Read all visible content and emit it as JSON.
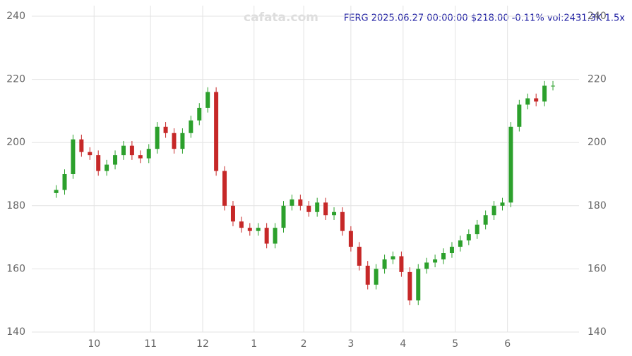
{
  "chart_data": {
    "type": "candlestick",
    "title": "FERG 2025.06.27 00:00:00 $218.00 -0.11% vol:2431.3K 1.5x",
    "watermark": "cafata.com",
    "up_color": "#2ca02c",
    "down_color": "#c62828",
    "open": [
      184,
      185,
      190,
      201,
      197,
      196,
      191,
      193,
      196,
      199,
      196,
      195,
      198,
      205,
      203,
      198,
      203,
      207,
      211,
      216,
      191,
      180,
      175,
      173,
      172,
      173,
      168,
      173,
      180,
      182,
      180,
      178,
      181,
      177,
      178,
      172,
      167,
      161,
      155,
      160,
      163,
      164,
      159,
      150,
      160,
      162,
      163,
      165,
      167,
      169,
      171,
      174,
      177,
      180,
      181,
      205,
      212,
      214,
      213,
      218
    ],
    "high": [
      186.5,
      191.5,
      202.5,
      202.5,
      198.5,
      197.5,
      194.5,
      197.5,
      200.5,
      200.5,
      197.5,
      199.5,
      206.5,
      206.5,
      204.5,
      204.5,
      208.5,
      212.5,
      217.5,
      217.5,
      192.5,
      181.5,
      176.5,
      174.5,
      174.5,
      174.5,
      174.5,
      181.5,
      183.5,
      183.5,
      181.5,
      182.5,
      182.5,
      179.5,
      179.5,
      173.5,
      168.5,
      162.5,
      161.5,
      164.5,
      165.5,
      165.5,
      160.5,
      161.5,
      163.5,
      164.5,
      166.5,
      168.5,
      170.5,
      172.5,
      175.5,
      178.5,
      181.5,
      182.5,
      206.5,
      213.5,
      215.5,
      215.5,
      219.5,
      219.5
    ],
    "low": [
      182.5,
      183.5,
      188.5,
      195.5,
      194.5,
      189.5,
      189.5,
      191.5,
      194.5,
      194.5,
      193.5,
      193.5,
      196.5,
      201.5,
      196.5,
      196.5,
      201.5,
      205.5,
      209.5,
      189.5,
      178.5,
      173.5,
      171.5,
      170.5,
      170.5,
      166.5,
      166.5,
      171.5,
      178.5,
      178.5,
      176.5,
      176.5,
      175.5,
      175.5,
      170.5,
      165.5,
      159.5,
      153.5,
      153.5,
      158.5,
      161.5,
      157.5,
      148.5,
      148.5,
      158.5,
      160.5,
      161.5,
      163.5,
      165.5,
      167.5,
      169.5,
      172.5,
      175.5,
      178.5,
      179.5,
      203.5,
      210.5,
      211.5,
      211.5,
      216.5
    ],
    "close": [
      185,
      190,
      201,
      197,
      196,
      191,
      193,
      196,
      199,
      196,
      195,
      198,
      205,
      203,
      198,
      203,
      207,
      211,
      216,
      191,
      180,
      175,
      173,
      172,
      173,
      168,
      173,
      180,
      182,
      180,
      178,
      181,
      177,
      178,
      172,
      167,
      161,
      155,
      160,
      163,
      164,
      159,
      150,
      160,
      162,
      163,
      165,
      167,
      169,
      171,
      174,
      177,
      180,
      181,
      205,
      212,
      214,
      213,
      218,
      218
    ],
    "xlim": [
      -2.9,
      62.1
    ],
    "xticks": [
      {
        "value": 4.5,
        "label": "10"
      },
      {
        "value": 11.2,
        "label": "11"
      },
      {
        "value": 17.4,
        "label": "12"
      },
      {
        "value": 23.5,
        "label": "1"
      },
      {
        "value": 29.4,
        "label": "2"
      },
      {
        "value": 35.0,
        "label": "3"
      },
      {
        "value": 41.2,
        "label": "4"
      },
      {
        "value": 47.4,
        "label": "5"
      },
      {
        "value": 53.6,
        "label": "6"
      }
    ],
    "ylim": [
      140,
      240
    ],
    "yticks": [
      140,
      160,
      180,
      200,
      220,
      240
    ],
    "grid": true
  }
}
